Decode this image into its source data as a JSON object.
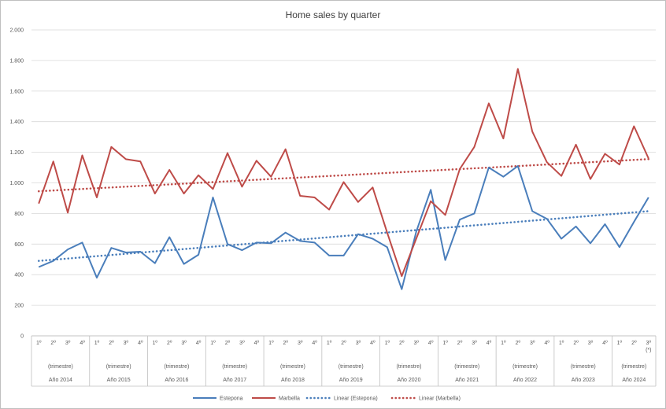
{
  "chart_data": {
    "type": "line",
    "title": "Home sales by quarter",
    "xlabel": "",
    "ylabel": "",
    "ylim": [
      0,
      2000
    ],
    "yticks": [
      0,
      200,
      400,
      600,
      800,
      1000,
      1200,
      1400,
      1600,
      1800,
      2000
    ],
    "ytick_labels": [
      "0",
      "200",
      "400",
      "600",
      "800",
      "1.000",
      "1.200",
      "1.400",
      "1.600",
      "1.800",
      "2.000"
    ],
    "grid": true,
    "legend_position": "bottom",
    "period_label": "(trimestre)",
    "years": [
      {
        "label": "Año 2014",
        "quarters": [
          "1º",
          "2º",
          "3º",
          "4º"
        ]
      },
      {
        "label": "Año 2015",
        "quarters": [
          "1º",
          "2º",
          "3º",
          "4º"
        ]
      },
      {
        "label": "Año 2016",
        "quarters": [
          "1º",
          "2º",
          "3º",
          "4º"
        ]
      },
      {
        "label": "Año 2017",
        "quarters": [
          "1º",
          "2º",
          "3º",
          "4º"
        ]
      },
      {
        "label": "Año 2018",
        "quarters": [
          "1º",
          "2º",
          "3º",
          "4º"
        ]
      },
      {
        "label": "Año 2019",
        "quarters": [
          "1º",
          "2º",
          "3º",
          "4º"
        ]
      },
      {
        "label": "Año 2020",
        "quarters": [
          "1º",
          "2º",
          "3º",
          "4º"
        ]
      },
      {
        "label": "Año 2021",
        "quarters": [
          "1º",
          "2º",
          "3º",
          "4º"
        ]
      },
      {
        "label": "Año 2022",
        "quarters": [
          "1º",
          "2º",
          "3º",
          "4º"
        ]
      },
      {
        "label": "Año 2023",
        "quarters": [
          "1º",
          "2º",
          "3º",
          "4º"
        ]
      },
      {
        "label": "Año 2024",
        "quarters": [
          "1º",
          "2º",
          "3º\n(*)"
        ]
      }
    ],
    "series": [
      {
        "name": "Estepona",
        "color": "#4a7ebb",
        "values": [
          450,
          490,
          565,
          610,
          380,
          575,
          545,
          550,
          475,
          645,
          470,
          530,
          905,
          600,
          560,
          610,
          605,
          675,
          620,
          610,
          525,
          525,
          665,
          635,
          580,
          305,
          680,
          955,
          495,
          760,
          800,
          1100,
          1040,
          1110,
          815,
          765,
          635,
          715,
          605,
          730,
          580,
          745,
          905
        ]
      },
      {
        "name": "Marbella",
        "color": "#be4b48",
        "values": [
          865,
          1140,
          805,
          1180,
          905,
          1235,
          1155,
          1140,
          930,
          1085,
          930,
          1050,
          960,
          1195,
          975,
          1145,
          1040,
          1220,
          915,
          905,
          825,
          1005,
          875,
          970,
          675,
          390,
          635,
          880,
          790,
          1090,
          1235,
          1520,
          1290,
          1745,
          1335,
          1135,
          1045,
          1250,
          1025,
          1190,
          1120,
          1370,
          1160
        ]
      }
    ],
    "trendlines": [
      {
        "name": "Linear (Estepona)",
        "of": "Estepona",
        "color": "#4a7ebb",
        "start": 490,
        "end": 815
      },
      {
        "name": "Linear (Marbella)",
        "of": "Marbella",
        "color": "#be4b48",
        "start": 945,
        "end": 1155
      }
    ]
  }
}
